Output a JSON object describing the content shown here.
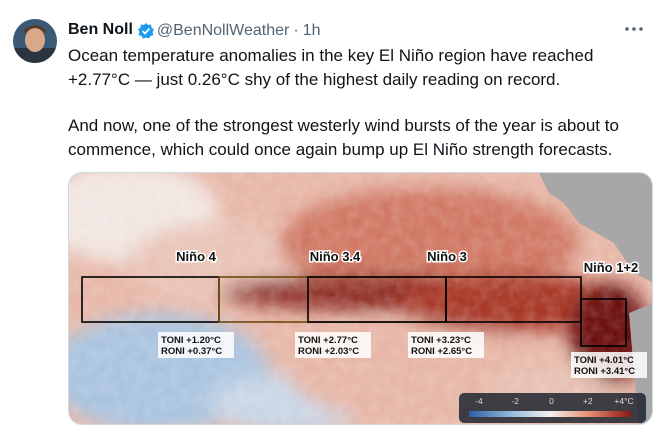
{
  "author": {
    "name": "Ben Noll",
    "handle": "@BenNollWeather",
    "separator": "·",
    "time": "1h"
  },
  "tweet": {
    "paragraphs": [
      [
        "Ocean temperature anomalies in the key El Niño region have reached",
        "+2.77°C — just 0.26°C shy of the highest daily reading on record."
      ],
      [
        "And now, one of the strongest westerly wind bursts of the year is about to",
        "commence, which could once again bump up El Niño strength forecasts."
      ]
    ]
  },
  "map": {
    "regions": [
      {
        "label": "Niño 4",
        "toni": "TONI +1.20°C",
        "roni": "RONI +0.37°C"
      },
      {
        "label": "Niño 3.4",
        "toni": "TONI +2.77°C",
        "roni": "RONI +2.03°C"
      },
      {
        "label": "Niño 3",
        "toni": "TONI +3.23°C",
        "roni": "RONI +2.65°C"
      },
      {
        "label": "Niño 1+2",
        "toni": "TONI +4.01°C",
        "roni": "RONI +3.41°C"
      }
    ],
    "colorbar": [
      "-4",
      "-2",
      "0",
      "+2",
      "+4°C"
    ]
  }
}
